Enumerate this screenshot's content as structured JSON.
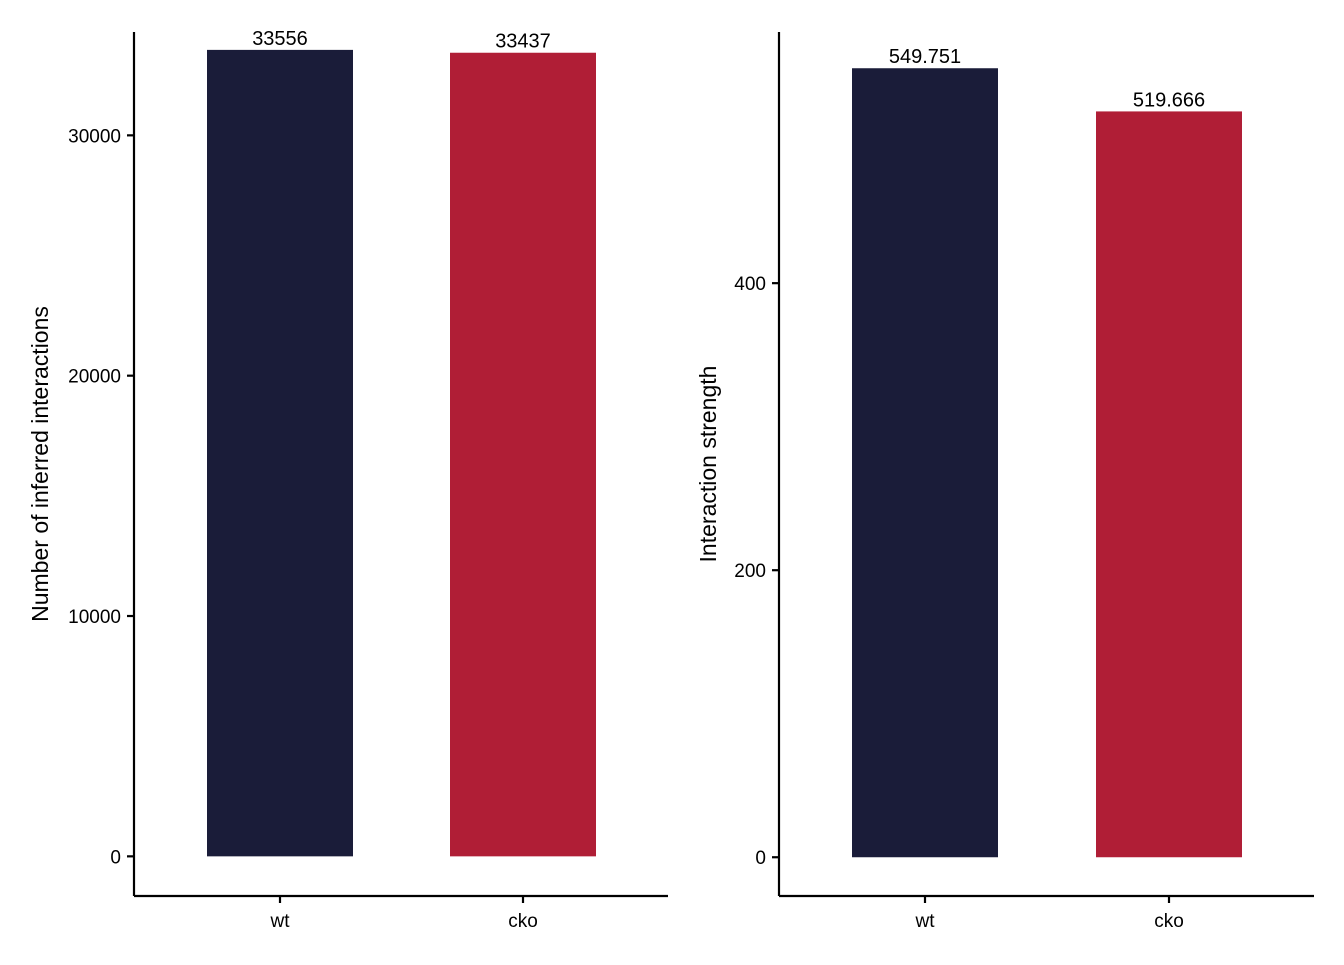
{
  "chart_data": [
    {
      "type": "bar",
      "categories": [
        "wt",
        "cko"
      ],
      "values": [
        33556,
        33437
      ],
      "value_labels": [
        "33556",
        "33437"
      ],
      "colors": [
        "#1a1c39",
        "#b01e36"
      ],
      "title": "",
      "xlabel": "",
      "ylabel": "Number of inferred interactions",
      "ylim": [
        -1650,
        34300
      ],
      "yticks": [
        0,
        10000,
        20000,
        30000
      ],
      "ytick_labels": [
        "0",
        "10000",
        "20000",
        "30000"
      ],
      "grid": false,
      "legend": "none"
    },
    {
      "type": "bar",
      "categories": [
        "wt",
        "cko"
      ],
      "values": [
        549.751,
        519.666
      ],
      "value_labels": [
        "549.751",
        "519.666"
      ],
      "colors": [
        "#1a1c39",
        "#b01e36"
      ],
      "title": "",
      "xlabel": "",
      "ylabel": "Interaction strength",
      "ylim": [
        -27,
        575
      ],
      "yticks": [
        0,
        200,
        400
      ],
      "ytick_labels": [
        "0",
        "200",
        "400"
      ],
      "grid": false,
      "legend": "none"
    }
  ]
}
